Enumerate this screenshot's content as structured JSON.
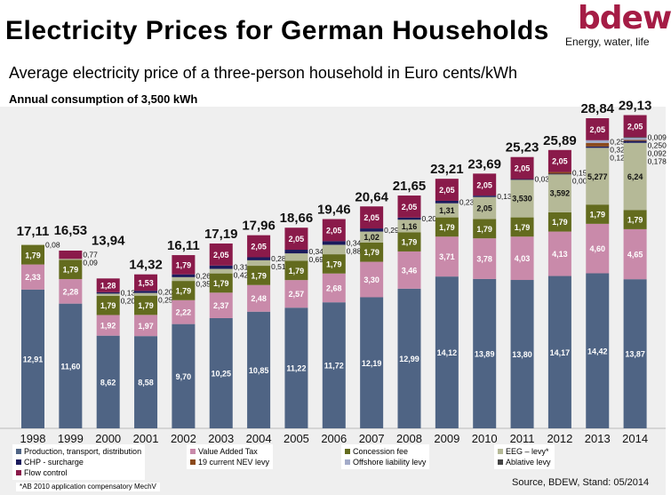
{
  "header": {
    "title": "Electricity Prices for German Households",
    "logo": "bdew",
    "tagline": "Energy, water, life",
    "subtitle": "Average electricity price of a three-person household in Euro cents/kWh",
    "subsubtitle": "Annual consumption of 3,500 kWh"
  },
  "footnote": "*AB 2010 application compensatory MechV",
  "source": "Source, BDEW, Stand: 05/2014",
  "chart_data": {
    "type": "bar",
    "stacked": true,
    "title": "Electricity Prices for German Households",
    "subtitle": "Average electricity price of a three-person household in Euro cents/kWh",
    "categories": [
      "1998",
      "1999",
      "2000",
      "2001",
      "2002",
      "2003",
      "2004",
      "2005",
      "2006",
      "2007",
      "2008",
      "2009",
      "2010",
      "2011",
      "2012",
      "2013",
      "2014"
    ],
    "totals": [
      "17,11",
      "16,53",
      "13,94",
      "14,32",
      "16,11",
      "17,19",
      "17,96",
      "18,66",
      "19,46",
      "20,64",
      "21,65",
      "23,21",
      "23,69",
      "25,23",
      "25,89",
      "28,84",
      "29,13"
    ],
    "series": [
      {
        "name": "Production, transport, distribution",
        "color": "#4f6484",
        "text": "#ffffff",
        "values": [
          12.91,
          11.6,
          8.62,
          8.58,
          9.7,
          10.25,
          10.85,
          11.22,
          11.72,
          12.19,
          12.99,
          14.12,
          13.89,
          13.8,
          14.17,
          14.42,
          13.87
        ],
        "labels": [
          "12,91",
          "11,60",
          "8,62",
          "8,58",
          "9,70",
          "10,25",
          "10,85",
          "11,22",
          "11,72",
          "12,19",
          "12,99",
          "14,12",
          "13,89",
          "13,80",
          "14,17",
          "14,42",
          "13,87"
        ]
      },
      {
        "name": "Value Added Tax",
        "color": "#c98aaa",
        "text": "#ffffff",
        "values": [
          2.33,
          2.28,
          1.92,
          1.97,
          2.22,
          2.37,
          2.48,
          2.57,
          2.68,
          3.3,
          3.46,
          3.71,
          3.78,
          4.03,
          4.13,
          4.6,
          4.65
        ],
        "labels": [
          "2,33",
          "2,28",
          "1,92",
          "1,97",
          "2,22",
          "2,37",
          "2,48",
          "2,57",
          "2,68",
          "3,30",
          "3,46",
          "3,71",
          "3,78",
          "4,03",
          "4,13",
          "4,60",
          "4,65"
        ]
      },
      {
        "name": "Concession fee",
        "color": "#636b1e",
        "text": "#ffffff",
        "values": [
          1.79,
          1.79,
          1.79,
          1.79,
          1.79,
          1.79,
          1.79,
          1.79,
          1.79,
          1.79,
          1.79,
          1.79,
          1.79,
          1.79,
          1.79,
          1.79,
          1.79
        ],
        "labels": [
          "1,79",
          "1,79",
          "1,79",
          "1,79",
          "1,79",
          "1,79",
          "1,79",
          "1,79",
          "1,79",
          "1,79",
          "1,79",
          "1,79",
          "1,79",
          "1,79",
          "1,79",
          "1,79",
          "1,79"
        ]
      },
      {
        "name": "EEG – levy*",
        "color": "#b5b997",
        "text": "#111111",
        "values": [
          0.08,
          0.09,
          0.2,
          0.25,
          0.35,
          0.42,
          0.51,
          0.69,
          0.88,
          1.02,
          1.16,
          1.31,
          2.05,
          3.53,
          3.592,
          5.277,
          6.24
        ],
        "labels": [
          "0,08",
          "0,09",
          "0,20",
          "0,25",
          "0,35",
          "0,42",
          "0,51",
          "0,69",
          "0,88",
          "1,02",
          "1,16",
          "1,31",
          "2,05",
          "3,530",
          "3,592",
          "5,277",
          "6,24"
        ]
      },
      {
        "name": "CHP - surcharge",
        "color": "#1b1b5c",
        "text": "#ffffff",
        "values": [
          0,
          0,
          0.13,
          0.2,
          0.26,
          0.31,
          0.28,
          0.34,
          0.34,
          0.29,
          0.2,
          0.23,
          0.13,
          0.03,
          0.002,
          0.126,
          0.178
        ],
        "labels": [
          "",
          "",
          "0,13",
          "0,20",
          "0,26",
          "0,31",
          "0,28",
          "0,34",
          "0,34",
          "0,29",
          "0,20",
          "0,23",
          "0,13",
          "0,03",
          "0,002",
          "0,126",
          "0,178"
        ]
      },
      {
        "name": "19 current NEV levy",
        "color": "#8b4a1c",
        "text": "#ffffff",
        "values": [
          0,
          0,
          0,
          0,
          0,
          0,
          0,
          0,
          0,
          0,
          0,
          0,
          0,
          0,
          0.151,
          0.329,
          0.092
        ],
        "labels": [
          "",
          "",
          "",
          "",
          "",
          "",
          "",
          "",
          "",
          "",
          "",
          "",
          "",
          "",
          "0,151",
          "0,329",
          "0,092"
        ]
      },
      {
        "name": "Offshore liability levy",
        "color": "#a3abc9",
        "text": "#111111",
        "values": [
          0,
          0,
          0,
          0,
          0,
          0,
          0,
          0,
          0,
          0,
          0,
          0,
          0,
          0,
          0,
          0.25,
          0.25
        ],
        "labels": [
          "",
          "",
          "",
          "",
          "",
          "",
          "",
          "",
          "",
          "",
          "",
          "",
          "",
          "",
          "",
          "0,250",
          "0,250"
        ]
      },
      {
        "name": "Ablative levy",
        "color": "#444444",
        "text": "#ffffff",
        "values": [
          0,
          0,
          0,
          0,
          0,
          0,
          0,
          0,
          0,
          0,
          0,
          0,
          0,
          0,
          0,
          0,
          0.009
        ],
        "labels": [
          "",
          "",
          "",
          "",
          "",
          "",
          "",
          "",
          "",
          "",
          "",
          "",
          "",
          "",
          "",
          "",
          "0,009"
        ]
      },
      {
        "name": "Flow control",
        "color": "#8a1a4a",
        "text": "#ffffff",
        "values": [
          0,
          0.77,
          1.28,
          1.53,
          1.79,
          2.05,
          2.05,
          2.05,
          2.05,
          2.05,
          2.05,
          2.05,
          2.05,
          2.05,
          2.05,
          2.05,
          2.05
        ],
        "labels": [
          "",
          "0,77",
          "1,28",
          "1,53",
          "1,79",
          "2,05",
          "2,05",
          "2,05",
          "2,05",
          "2,05",
          "2,05",
          "2,05",
          "2,05",
          "2,05",
          "2,05",
          "2,05",
          "2,05"
        ]
      }
    ],
    "ylim": [
      0,
      31
    ],
    "grid": false,
    "legend_position": "bottom"
  }
}
